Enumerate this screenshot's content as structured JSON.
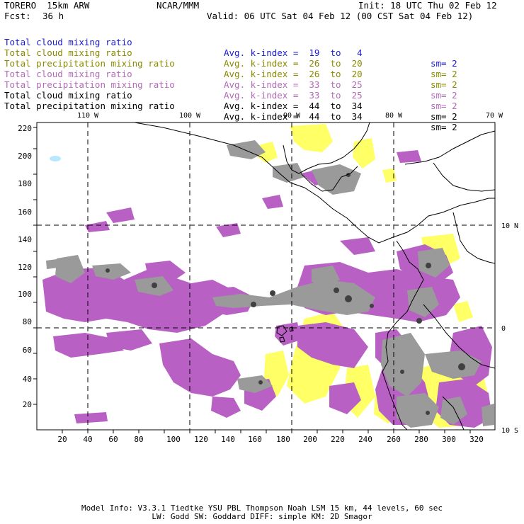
{
  "header": {
    "model": "TORERO  15km ARW",
    "org": "NCAR/MMM",
    "init": "Init: 18 UTC Thu 02 Feb 12",
    "fcst_label": "Fcst:",
    "fcst_value": "36 h",
    "valid": "Valid: 06 UTC Sat 04 Feb 12 (00 CST Sat 04 Feb 12)"
  },
  "legend": [
    {
      "field": "Total cloud mixing ratio",
      "kindex": "Avg. k-index =  19  to   4",
      "sm": "sm= 2",
      "color": "#1a1ad6"
    },
    {
      "field": "Total cloud mixing ratio",
      "kindex": "Avg. k-index =  26  to  20",
      "sm": "sm= 2",
      "color": "#8a8a00"
    },
    {
      "field": "Total precipitation mixing ratio",
      "kindex": "Avg. k-index =  26  to  20",
      "sm": "sm= 2",
      "color": "#8a8a00"
    },
    {
      "field": "Total cloud mixing ratio",
      "kindex": "Avg. k-index =  33  to  25",
      "sm": "sm= 2",
      "color": "#b36ab8"
    },
    {
      "field": "Total precipitation mixing ratio",
      "kindex": "Avg. k-index =  33  to  25",
      "sm": "sm= 2",
      "color": "#b36ab8"
    },
    {
      "field": "Total cloud mixing ratio",
      "kindex": "Avg. k-index =  44  to  34",
      "sm": "sm= 2",
      "color": "#000000"
    },
    {
      "field": "Total precipitation mixing ratio",
      "kindex": "Avg. k-index =  44  to  34",
      "sm": "sm= 2",
      "color": "#000000"
    }
  ],
  "map": {
    "lon_labels": [
      "110 W",
      "100 W",
      "90 W",
      "80 W",
      "70 W"
    ],
    "lat_labels": [
      "10 N",
      "0",
      "10 S"
    ],
    "x_ticks": [
      "20",
      "40",
      "60",
      "80",
      "100",
      "120",
      "140",
      "160",
      "180",
      "200",
      "220",
      "240",
      "260",
      "280",
      "300",
      "320"
    ],
    "y_ticks": [
      "20",
      "40",
      "60",
      "80",
      "100",
      "120",
      "140",
      "160",
      "180",
      "200",
      "220"
    ],
    "colors": {
      "purple": "#b860c4",
      "yellow": "#ffff66",
      "gray": "#9a9a9a",
      "darkgray": "#505050",
      "lightblue": "#b8e8ff"
    }
  },
  "footer": {
    "line1": "Model Info: V3.3.1   Tiedtke YSU PBL  Thompson    Noah LSM  15 km,   44 levels,   60 sec",
    "line2": "LW: Godd SW: Goddard DIFF: simple KM: 2D Smagor"
  }
}
